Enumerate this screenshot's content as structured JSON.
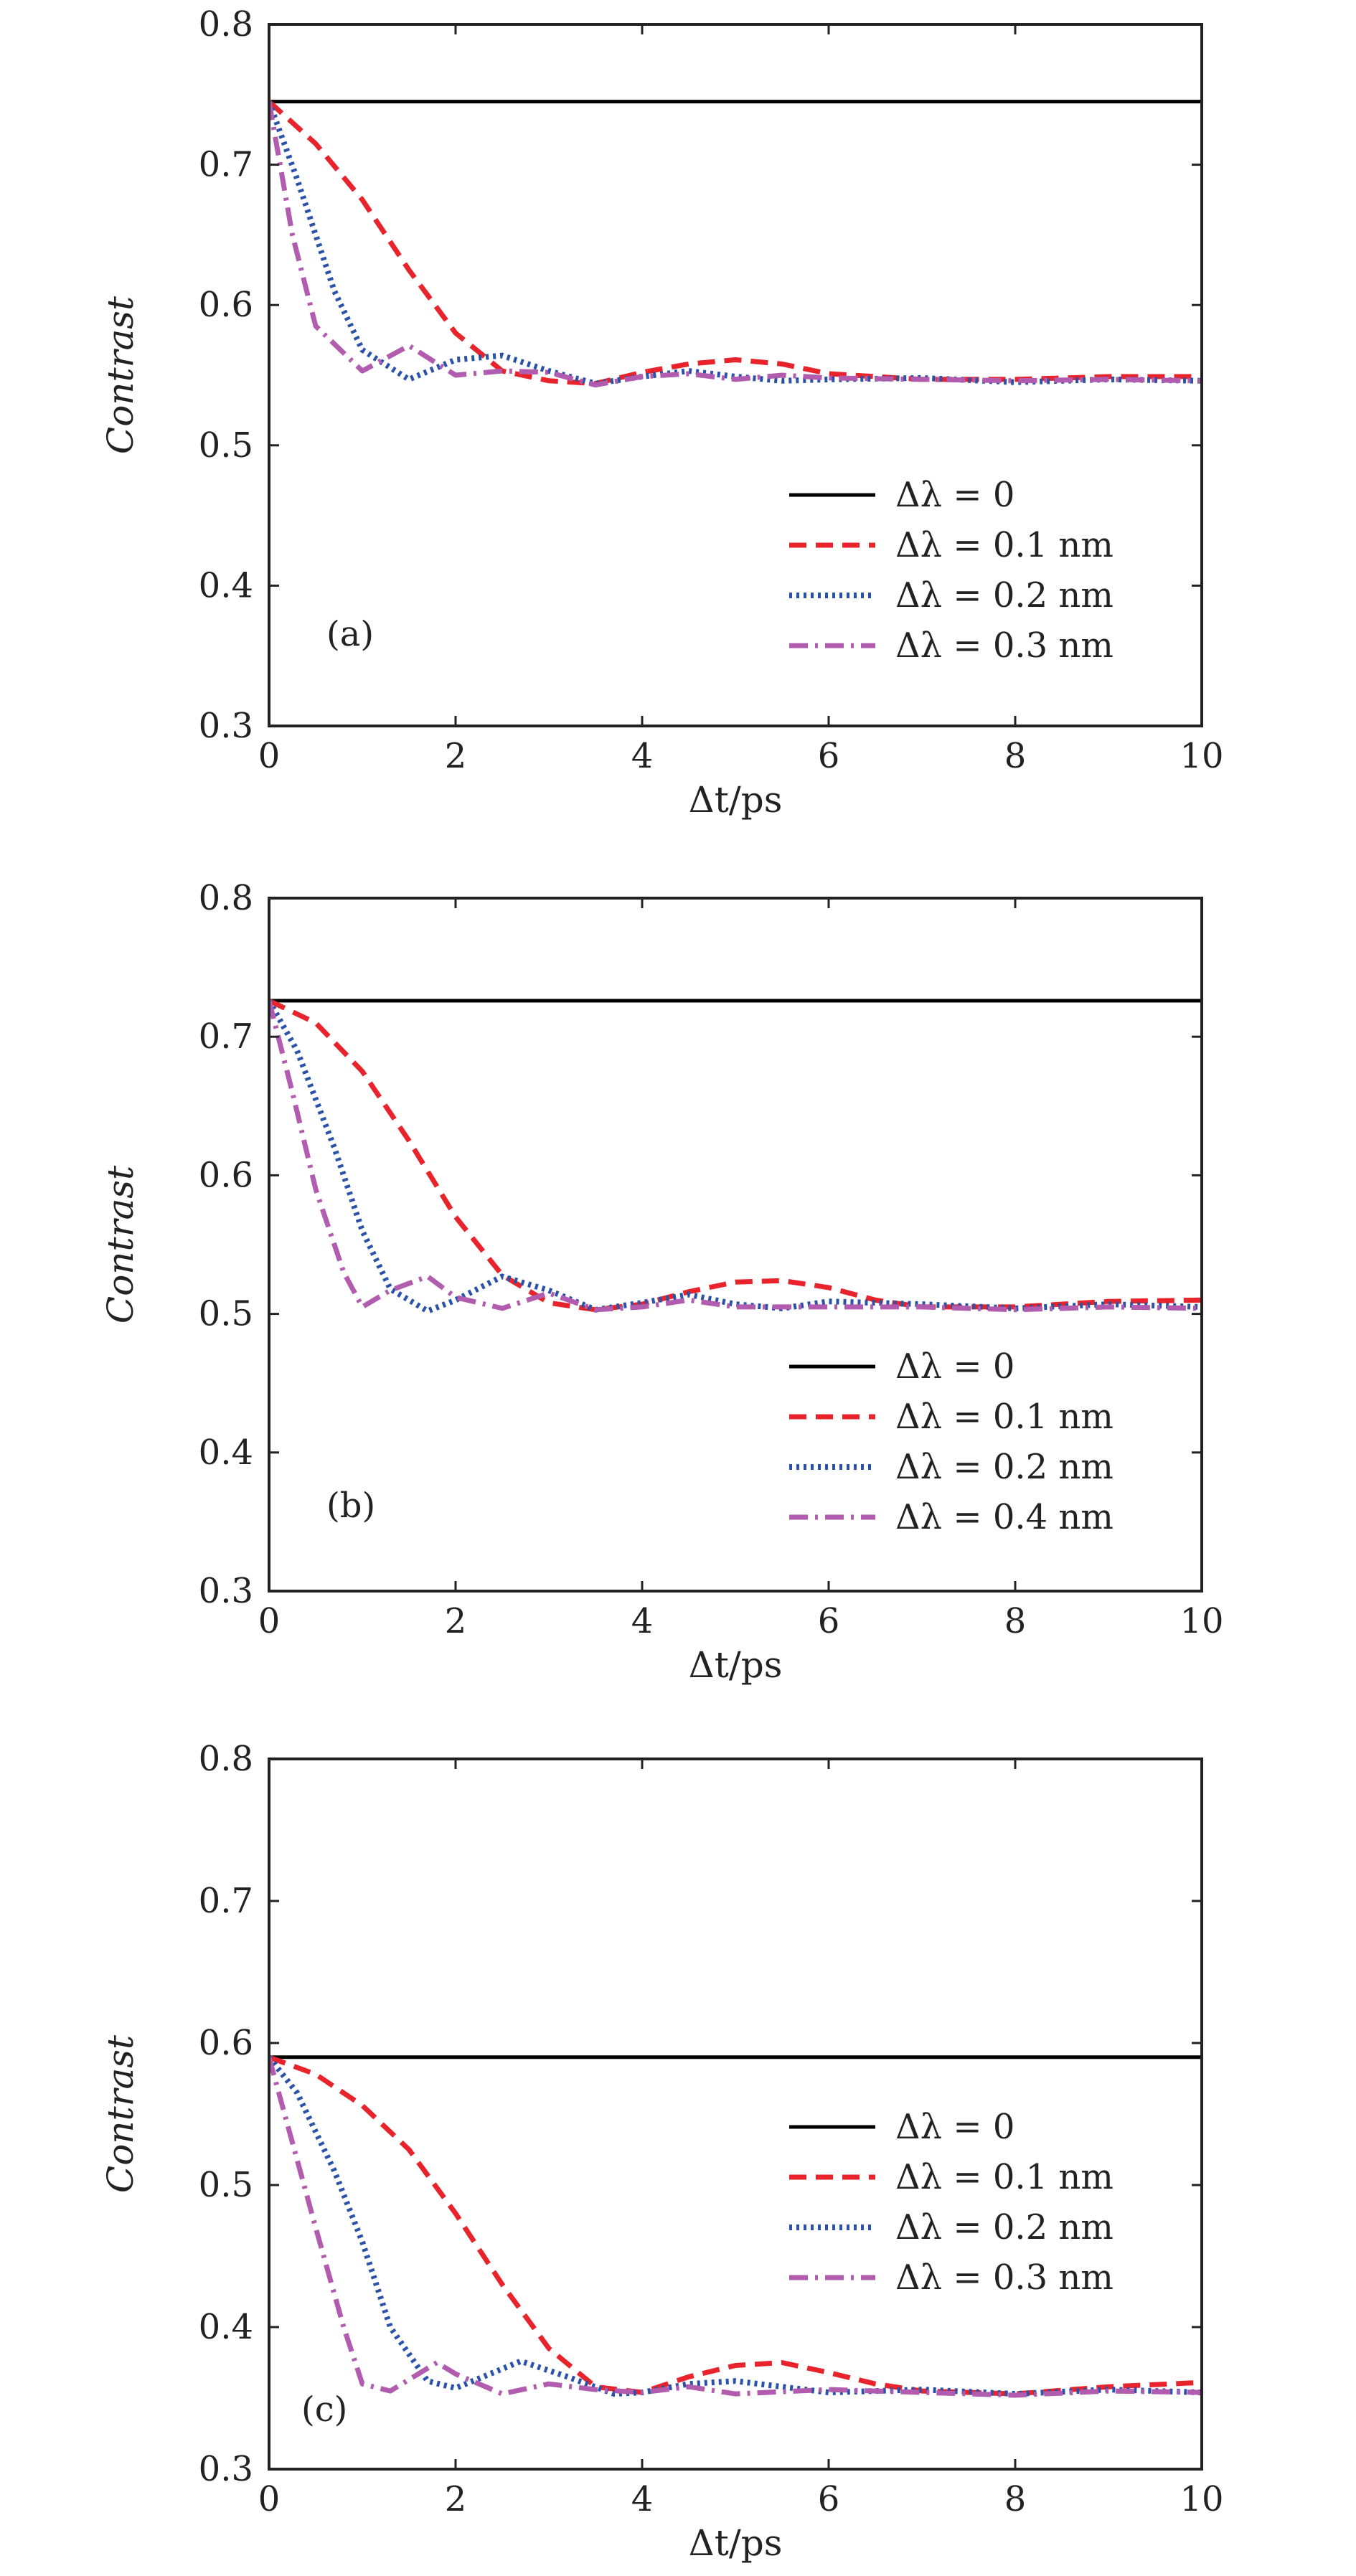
{
  "chart_data": [
    {
      "type": "line",
      "panel_label": "(a)",
      "xlabel": "Δt/ps",
      "ylabel": "Contrast",
      "xlim": [
        0,
        10
      ],
      "ylim": [
        0.3,
        0.8
      ],
      "xticks": [
        0,
        2,
        4,
        6,
        8,
        10
      ],
      "yticks": [
        0.3,
        0.4,
        0.5,
        0.6,
        0.7,
        0.8
      ],
      "grid": false,
      "legend_position": "lower-right",
      "series": [
        {
          "name": "Δλ = 0",
          "color": "#000000",
          "style": "solid",
          "x": [
            0,
            10
          ],
          "y": [
            0.745,
            0.745
          ]
        },
        {
          "name": "Δλ = 0.1 nm",
          "color": "#e8232b",
          "style": "dashed",
          "x": [
            0,
            0.5,
            1.0,
            1.5,
            2.0,
            2.5,
            3.0,
            3.5,
            4.0,
            4.5,
            5.0,
            5.5,
            6.0,
            7.0,
            8.0,
            9.0,
            10.0
          ],
          "y": [
            0.745,
            0.715,
            0.675,
            0.625,
            0.58,
            0.553,
            0.546,
            0.544,
            0.552,
            0.558,
            0.561,
            0.558,
            0.551,
            0.547,
            0.547,
            0.549,
            0.549
          ]
        },
        {
          "name": "Δλ = 0.2 nm",
          "color": "#2a52a8",
          "style": "dotted",
          "x": [
            0,
            0.3,
            0.7,
            1.0,
            1.5,
            2.0,
            2.5,
            3.0,
            3.5,
            4.0,
            4.5,
            5.0,
            5.5,
            6.0,
            7.0,
            8.0,
            9.0,
            10.0
          ],
          "y": [
            0.745,
            0.69,
            0.61,
            0.568,
            0.547,
            0.561,
            0.564,
            0.553,
            0.544,
            0.549,
            0.553,
            0.549,
            0.546,
            0.547,
            0.548,
            0.545,
            0.547,
            0.546
          ]
        },
        {
          "name": "Δλ = 0.3 nm",
          "color": "#b25cb0",
          "style": "dashdot",
          "x": [
            0,
            0.25,
            0.5,
            1.0,
            1.5,
            2.0,
            2.5,
            3.0,
            3.5,
            4.0,
            4.5,
            5.0,
            5.5,
            6.0,
            7.0,
            8.0,
            9.0,
            10.0
          ],
          "y": [
            0.745,
            0.65,
            0.585,
            0.553,
            0.571,
            0.55,
            0.553,
            0.552,
            0.543,
            0.549,
            0.551,
            0.547,
            0.55,
            0.548,
            0.547,
            0.546,
            0.547,
            0.546
          ]
        }
      ]
    },
    {
      "type": "line",
      "panel_label": "(b)",
      "xlabel": "Δt/ps",
      "ylabel": "Contrast",
      "xlim": [
        0,
        10
      ],
      "ylim": [
        0.3,
        0.8
      ],
      "xticks": [
        0,
        2,
        4,
        6,
        8,
        10
      ],
      "yticks": [
        0.3,
        0.4,
        0.5,
        0.6,
        0.7,
        0.8
      ],
      "grid": false,
      "legend_position": "lower-right",
      "series": [
        {
          "name": "Δλ = 0",
          "color": "#000000",
          "style": "solid",
          "x": [
            0,
            10
          ],
          "y": [
            0.726,
            0.726
          ]
        },
        {
          "name": "Δλ = 0.1 nm",
          "color": "#e8232b",
          "style": "dashed",
          "x": [
            0,
            0.5,
            1.0,
            1.5,
            2.0,
            2.5,
            3.0,
            3.5,
            4.0,
            4.5,
            5.0,
            5.5,
            6.0,
            6.5,
            7.0,
            8.0,
            9.0,
            10.0
          ],
          "y": [
            0.726,
            0.71,
            0.675,
            0.625,
            0.57,
            0.528,
            0.508,
            0.503,
            0.507,
            0.516,
            0.523,
            0.524,
            0.519,
            0.51,
            0.505,
            0.505,
            0.509,
            0.51
          ]
        },
        {
          "name": "Δλ = 0.2 nm",
          "color": "#2a52a8",
          "style": "dotted",
          "x": [
            0,
            0.3,
            0.7,
            1.0,
            1.3,
            1.7,
            2.0,
            2.5,
            3.0,
            3.5,
            4.0,
            4.5,
            5.0,
            5.5,
            6.0,
            7.0,
            8.0,
            9.0,
            10.0
          ],
          "y": [
            0.726,
            0.69,
            0.62,
            0.56,
            0.518,
            0.502,
            0.51,
            0.527,
            0.517,
            0.503,
            0.508,
            0.514,
            0.507,
            0.504,
            0.509,
            0.507,
            0.504,
            0.507,
            0.505
          ]
        },
        {
          "name": "Δλ = 0.4 nm",
          "color": "#b25cb0",
          "style": "dashdot",
          "x": [
            0,
            0.25,
            0.5,
            0.8,
            1.0,
            1.3,
            1.7,
            2.0,
            2.5,
            3.0,
            3.5,
            4.0,
            4.5,
            5.0,
            6.0,
            7.0,
            8.0,
            9.0,
            10.0
          ],
          "y": [
            0.726,
            0.66,
            0.59,
            0.53,
            0.505,
            0.517,
            0.527,
            0.512,
            0.504,
            0.515,
            0.503,
            0.505,
            0.51,
            0.505,
            0.505,
            0.505,
            0.503,
            0.505,
            0.504
          ]
        }
      ]
    },
    {
      "type": "line",
      "panel_label": "(c)",
      "xlabel": "Δt/ps",
      "ylabel": "Contrast",
      "xlim": [
        0,
        10
      ],
      "ylim": [
        0.3,
        0.8
      ],
      "xticks": [
        0,
        2,
        4,
        6,
        8,
        10
      ],
      "yticks": [
        0.3,
        0.4,
        0.5,
        0.6,
        0.7,
        0.8
      ],
      "grid": false,
      "legend_position": "center-right",
      "series": [
        {
          "name": "Δλ = 0",
          "color": "#000000",
          "style": "solid",
          "x": [
            0,
            10
          ],
          "y": [
            0.59,
            0.59
          ]
        },
        {
          "name": "Δλ = 0.1 nm",
          "color": "#e8232b",
          "style": "dashed",
          "x": [
            0,
            0.5,
            1.0,
            1.5,
            2.0,
            2.5,
            3.0,
            3.5,
            4.0,
            4.5,
            5.0,
            5.5,
            6.0,
            6.5,
            7.0,
            8.0,
            9.0,
            10.0
          ],
          "y": [
            0.59,
            0.578,
            0.556,
            0.525,
            0.48,
            0.43,
            0.385,
            0.358,
            0.354,
            0.365,
            0.373,
            0.375,
            0.368,
            0.36,
            0.355,
            0.353,
            0.358,
            0.361
          ]
        },
        {
          "name": "Δλ = 0.2 nm",
          "color": "#2a52a8",
          "style": "dotted",
          "x": [
            0,
            0.3,
            0.7,
            1.0,
            1.3,
            1.7,
            2.0,
            2.7,
            3.2,
            3.7,
            4.0,
            4.5,
            5.0,
            5.5,
            6.0,
            7.0,
            8.0,
            9.0,
            10.0
          ],
          "y": [
            0.59,
            0.565,
            0.51,
            0.46,
            0.4,
            0.362,
            0.357,
            0.376,
            0.365,
            0.353,
            0.354,
            0.36,
            0.362,
            0.358,
            0.354,
            0.356,
            0.353,
            0.356,
            0.354
          ]
        },
        {
          "name": "Δλ = 0.3 nm",
          "color": "#b25cb0",
          "style": "dashdot",
          "x": [
            0,
            0.25,
            0.5,
            0.8,
            1.0,
            1.3,
            1.8,
            2.0,
            2.5,
            3.0,
            3.5,
            4.0,
            4.5,
            5.0,
            6.0,
            7.0,
            8.0,
            9.0,
            10.0
          ],
          "y": [
            0.59,
            0.53,
            0.47,
            0.4,
            0.36,
            0.355,
            0.375,
            0.367,
            0.353,
            0.36,
            0.356,
            0.354,
            0.358,
            0.353,
            0.356,
            0.354,
            0.352,
            0.355,
            0.354
          ]
        }
      ]
    }
  ]
}
